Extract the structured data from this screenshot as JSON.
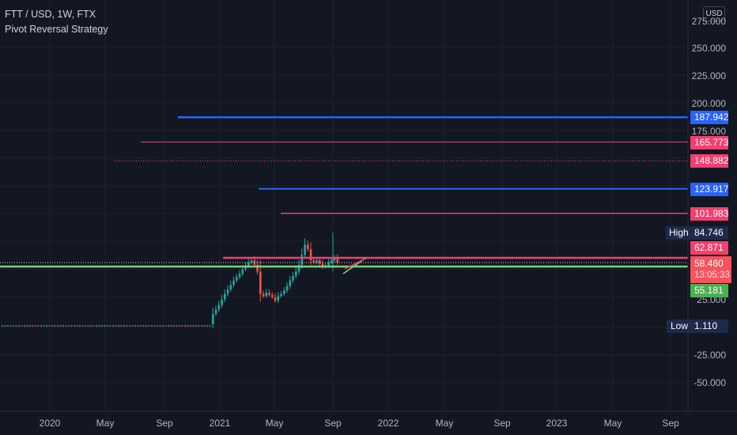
{
  "header": {
    "symbol_line": "FTT / USD, 1W, FTX",
    "indicator": "Pivot Reversal Strategy",
    "currency": "USD"
  },
  "y_axis": {
    "labels": [
      "275.000",
      "250.000",
      "225.000",
      "200.000",
      "175.000",
      "25.000",
      "-25.000",
      "-50.000"
    ],
    "values": [
      275,
      250,
      225,
      200,
      175,
      25,
      -25,
      -50
    ]
  },
  "x_axis": {
    "labels": [
      "2020",
      "May",
      "Sep",
      "2021",
      "May",
      "Sep",
      "2022",
      "May",
      "Sep",
      "2023",
      "May",
      "Sep"
    ]
  },
  "price_tags": {
    "t1": "187.942",
    "t2": "165.773",
    "t3": "148.882",
    "t4": "123.917",
    "t5": "101.983",
    "high_label": "High",
    "high_value": "84.746",
    "t6": "62.871",
    "current": "58.460",
    "countdown": "13:05:33",
    "t7": "55.181",
    "low_label": "Low",
    "low_value": "1.110"
  },
  "colors": {
    "background": "#131722",
    "up": "#26a69a",
    "down": "#ef5350",
    "blue_level": "#2962ff",
    "pink_level": "#f23f6f",
    "green_level": "#7ed07e",
    "axis_text": "#b2b5be"
  },
  "chart_data": {
    "type": "candlestick",
    "levels": [
      {
        "value": 187.942,
        "color": "blue"
      },
      {
        "value": 165.773,
        "color": "pink"
      },
      {
        "value": 148.882,
        "color": "pink",
        "style": "dotted"
      },
      {
        "value": 123.917,
        "color": "blue"
      },
      {
        "value": 101.983,
        "color": "pink"
      },
      {
        "value": 62.871,
        "color": "pink"
      },
      {
        "value": 55.181,
        "color": "green"
      }
    ],
    "high": 84.746,
    "low": 1.11,
    "last": 58.46,
    "weekly_close_samples": [
      1.1,
      1.2,
      1.3,
      1.4,
      1.5,
      1.6,
      1.5,
      1.7,
      2,
      2.2,
      2.5,
      2.8,
      3,
      3.2,
      3.5,
      4,
      5,
      6,
      7,
      9,
      12,
      16,
      20,
      25,
      30,
      34,
      38,
      42,
      45,
      48,
      52,
      55,
      58,
      60,
      56,
      50,
      30,
      28,
      31,
      29,
      27,
      24,
      28,
      30,
      33,
      37,
      42,
      46,
      50,
      56,
      65,
      74,
      70,
      60,
      58,
      60,
      57,
      54,
      55,
      58,
      60,
      62,
      58
    ]
  }
}
